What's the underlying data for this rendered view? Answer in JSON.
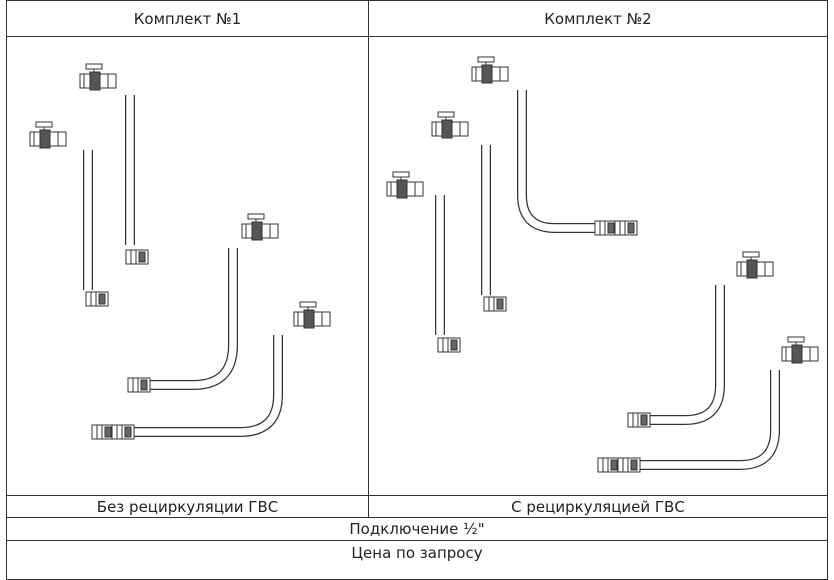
{
  "table": {
    "header": [
      "Комплект №1",
      "Комплект №2"
    ],
    "captions": [
      "Без рециркуляции ГВС",
      "С рециркуляцией ГВС"
    ],
    "rows": [
      "Подключение ½\"",
      "Цена по запросу"
    ]
  }
}
